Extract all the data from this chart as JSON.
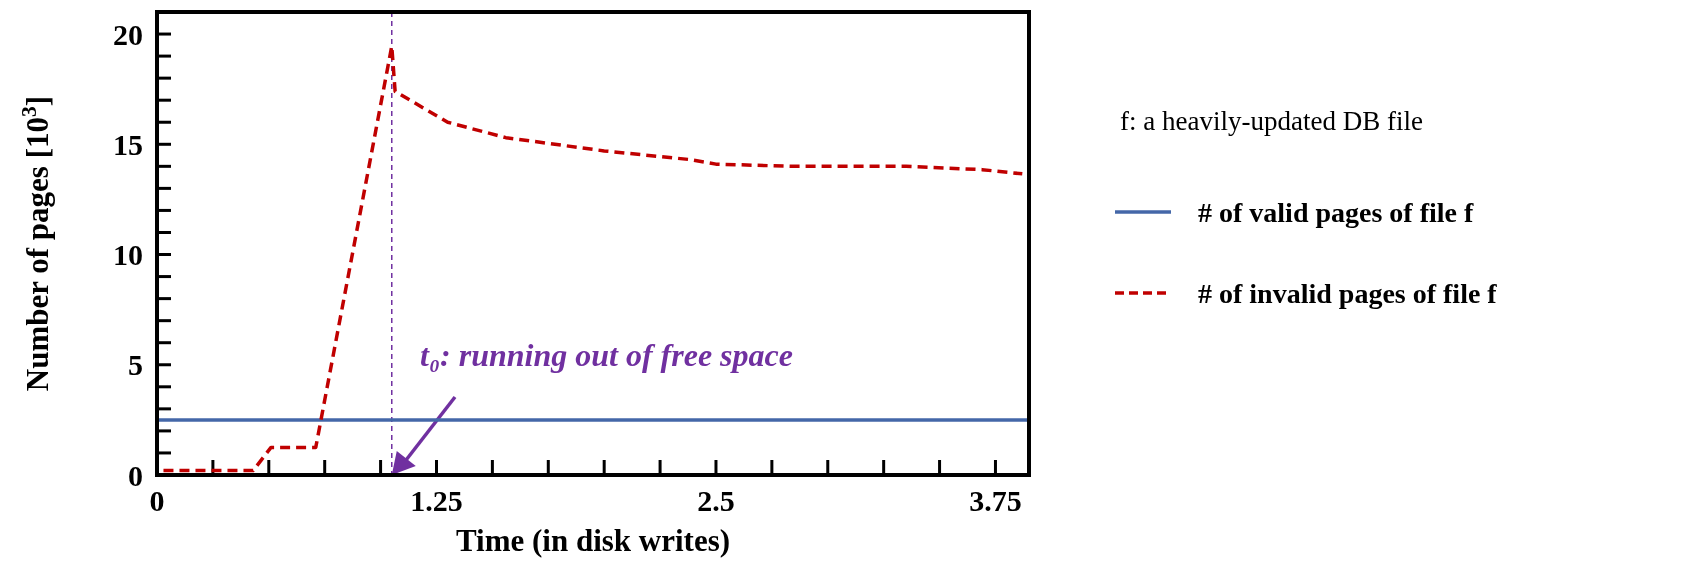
{
  "chart_data": {
    "type": "line",
    "xlabel": "Time (in disk writes)",
    "ylabel": "Number of pages [10$^{3}$]",
    "legend_title": "f: a heavily-updated DB file",
    "xlim": [
      0,
      3.9
    ],
    "ylim": [
      0,
      21
    ],
    "xticks": [
      0,
      {
        "value": 0.25,
        "label": null
      },
      {
        "value": 0.5,
        "label": null
      },
      {
        "value": 0.75,
        "label": null
      },
      {
        "value": 1,
        "label": null
      },
      1.25,
      {
        "value": 1.5,
        "label": null
      },
      {
        "value": 1.75,
        "label": null
      },
      {
        "value": 2,
        "label": null
      },
      {
        "value": 2.25,
        "label": null
      },
      2.5,
      {
        "value": 2.75,
        "label": null
      },
      {
        "value": 3,
        "label": null
      },
      {
        "value": 3.25,
        "label": null
      },
      {
        "value": 3.5,
        "label": null
      },
      3.75
    ],
    "yticks": [
      0,
      {
        "value": 1,
        "label": null
      },
      {
        "value": 2,
        "label": null
      },
      {
        "value": 3,
        "label": null
      },
      {
        "value": 4,
        "label": null
      },
      5,
      {
        "value": 6,
        "label": null
      },
      {
        "value": 7,
        "label": null
      },
      {
        "value": 8,
        "label": null
      },
      {
        "value": 9,
        "label": null
      },
      10,
      {
        "value": 11,
        "label": null
      },
      {
        "value": 12,
        "label": null
      },
      {
        "value": 13,
        "label": null
      },
      {
        "value": 14,
        "label": null
      },
      15,
      {
        "value": 16,
        "label": null
      },
      {
        "value": 17,
        "label": null
      },
      {
        "value": 18,
        "label": null
      },
      {
        "value": 19,
        "label": null
      },
      20
    ],
    "legend": "right",
    "grid": false,
    "series": [
      {
        "name": "# of valid pages of file f",
        "color": "#4467a8",
        "line_style": "solid",
        "x": [
          0,
          3.9
        ],
        "values": [
          2.5,
          2.5
        ]
      },
      {
        "name": "# of invalid pages of file f",
        "color": "#c00000",
        "line_style": "dashed",
        "x": [
          0,
          0.43,
          0.51,
          0.71,
          1.05,
          1.065,
          1.3,
          1.56,
          2.0,
          2.39,
          2.5,
          2.84,
          3.35,
          3.69,
          3.87
        ],
        "values": [
          0.2,
          0.2,
          1.25,
          1.25,
          19.45,
          17.4,
          16.0,
          15.3,
          14.7,
          14.3,
          14.1,
          14.0,
          14.0,
          13.85,
          13.66
        ]
      }
    ],
    "ref_lines": [
      {
        "axis": "x",
        "value": 1.05,
        "label": "t₀: running out of free space",
        "color": "#7030a0",
        "line_style": "dashed"
      }
    ]
  }
}
